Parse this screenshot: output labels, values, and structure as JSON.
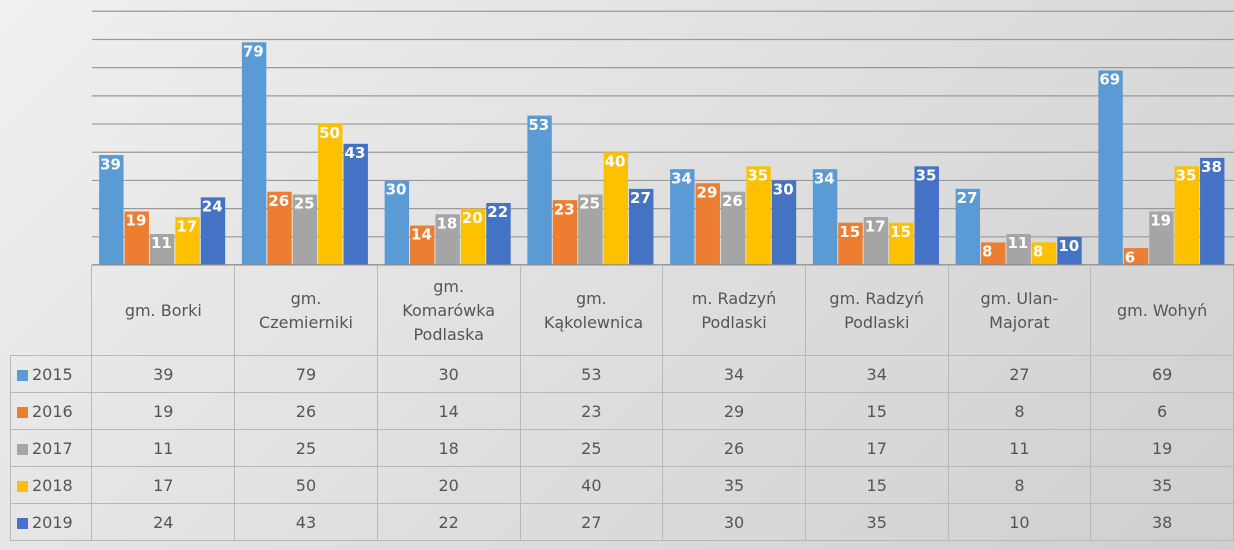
{
  "chart_data": {
    "type": "bar",
    "categories": [
      "gm. Borki",
      "gm. Czemierniki",
      "gm. Komarówka Podlaska",
      "gm. Kąkolewnica",
      "m. Radzyń Podlaski",
      "gm. Radzyń Podlaski",
      "gm. Ulan-Majorat",
      "gm. Wohyń"
    ],
    "series": [
      {
        "name": "2015",
        "color": "#5b9bd5",
        "values": [
          39,
          79,
          30,
          53,
          34,
          34,
          27,
          69
        ]
      },
      {
        "name": "2016",
        "color": "#ed7d31",
        "values": [
          19,
          26,
          14,
          23,
          29,
          15,
          8,
          6
        ]
      },
      {
        "name": "2017",
        "color": "#a5a5a5",
        "values": [
          11,
          25,
          18,
          25,
          26,
          17,
          11,
          19
        ]
      },
      {
        "name": "2018",
        "color": "#ffc000",
        "values": [
          17,
          50,
          20,
          40,
          35,
          15,
          8,
          35
        ]
      },
      {
        "name": "2019",
        "color": "#4472c4",
        "values": [
          24,
          43,
          22,
          27,
          30,
          35,
          10,
          38
        ]
      }
    ],
    "ylim": [
      0,
      94
    ],
    "yticks": [
      0,
      10,
      20,
      30,
      40,
      50,
      60,
      70,
      80,
      90
    ],
    "grid": true
  }
}
